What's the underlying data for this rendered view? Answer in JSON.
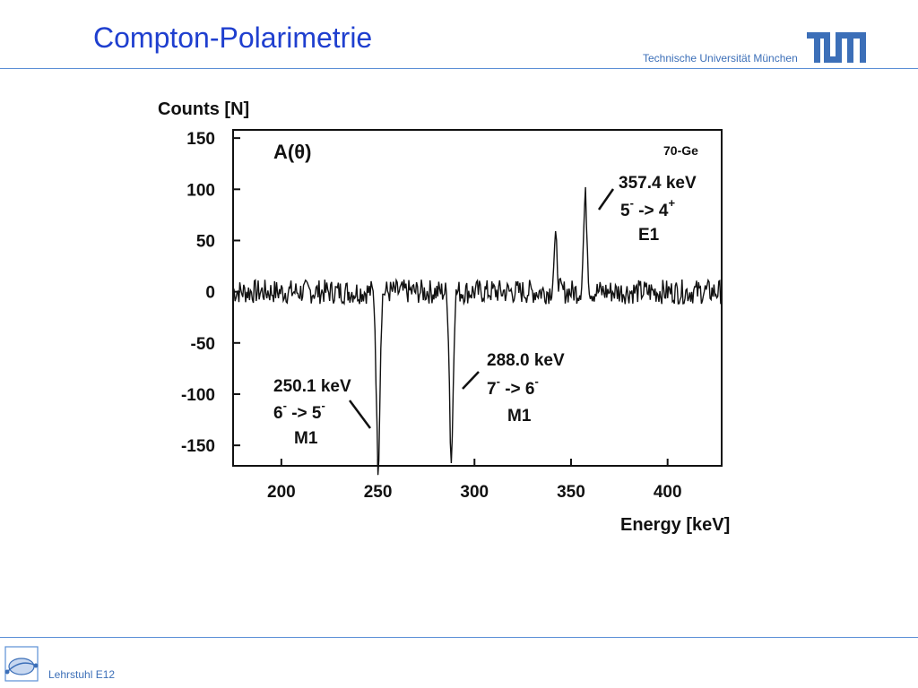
{
  "slide": {
    "title": "Compton-Polarimetrie",
    "university": "Technische Universität München",
    "footer": "Lehrstuhl E12"
  },
  "colors": {
    "title": "#1f3fcf",
    "rule": "#5b8fd6",
    "trace": "#111111"
  },
  "icons": [
    "tum-logo-icon",
    "e12-logo-icon"
  ],
  "chart_data": {
    "type": "line",
    "ylabel": "Counts [N]",
    "xlabel": "Energy [keV]",
    "inner_label": "A(θ)",
    "isotope_label": "70-Ge",
    "xlim": [
      175,
      428
    ],
    "ylim": [
      -170,
      158
    ],
    "x_ticks": [
      200,
      250,
      300,
      350,
      400
    ],
    "y_ticks": [
      150,
      100,
      50,
      0,
      -50,
      -100,
      -150
    ],
    "baseline": 0,
    "peaks": [
      {
        "x": 250.1,
        "y": -170
      },
      {
        "x": 288.0,
        "y": -165
      },
      {
        "x": 342.0,
        "y": 48
      },
      {
        "x": 357.4,
        "y": 92
      }
    ],
    "annotations": [
      {
        "energy": "250.1 keV",
        "transition": [
          "6",
          "-",
          " -> 5",
          "-"
        ],
        "type": "M1"
      },
      {
        "energy": "288.0 keV",
        "transition": [
          "7",
          "-",
          " -> 6",
          "-"
        ],
        "type": "M1"
      },
      {
        "energy": "357.4 keV",
        "transition": [
          "5",
          "-",
          " -> 4",
          "+"
        ],
        "type": "E1"
      }
    ]
  }
}
